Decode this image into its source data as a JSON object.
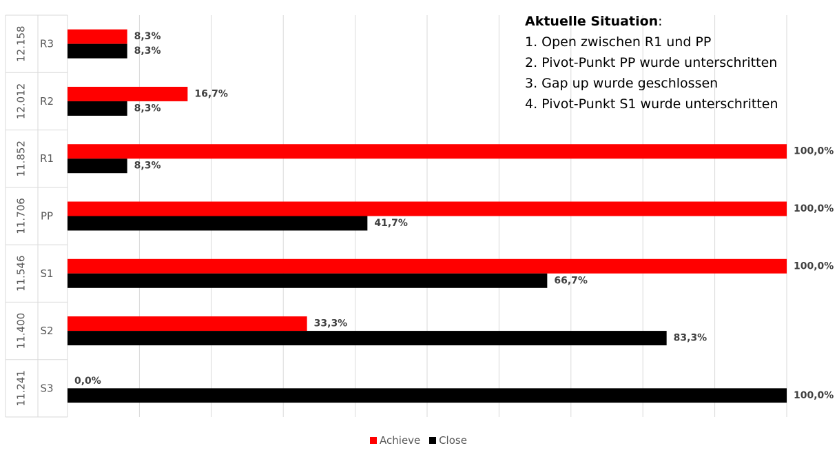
{
  "colors": {
    "achieve": "#ff0000",
    "close": "#000000",
    "grid": "#d9d9d9",
    "axis_text": "#595959",
    "label_text": "#404040"
  },
  "annotation": {
    "title": "Aktuelle Situation",
    "title_suffix": ":",
    "lines": [
      "1. Open zwischen R1 und PP",
      "2. Pivot-Punkt PP wurde unterschritten",
      "3. Gap up wurde geschlossen",
      "4. Pivot-Punkt S1 wurde unterschritten"
    ]
  },
  "chart_data": {
    "type": "bar",
    "orientation": "horizontal",
    "title": "",
    "xlabel": "",
    "ylabel": "",
    "xlim": [
      0,
      100
    ],
    "grid": true,
    "legend": "bottom",
    "categories": [
      "R3",
      "R2",
      "R1",
      "PP",
      "S1",
      "S2",
      "S3"
    ],
    "group_labels": [
      "12.158",
      "12.012",
      "11.852",
      "11.706",
      "11.546",
      "11.400",
      "11.241"
    ],
    "series": [
      {
        "name": "Achieve",
        "values": [
          8.3,
          16.7,
          100.0,
          100.0,
          100.0,
          33.3,
          0.0
        ],
        "labels": [
          "8,3%",
          "16,7%",
          "100,0%",
          "100,0%",
          "100,0%",
          "33,3%",
          "0,0%"
        ]
      },
      {
        "name": "Close",
        "values": [
          8.3,
          8.3,
          8.3,
          41.7,
          66.7,
          83.3,
          100.0
        ],
        "labels": [
          "8,3%",
          "8,3%",
          "8,3%",
          "41,7%",
          "66,7%",
          "83,3%",
          "100,0%"
        ]
      }
    ]
  }
}
